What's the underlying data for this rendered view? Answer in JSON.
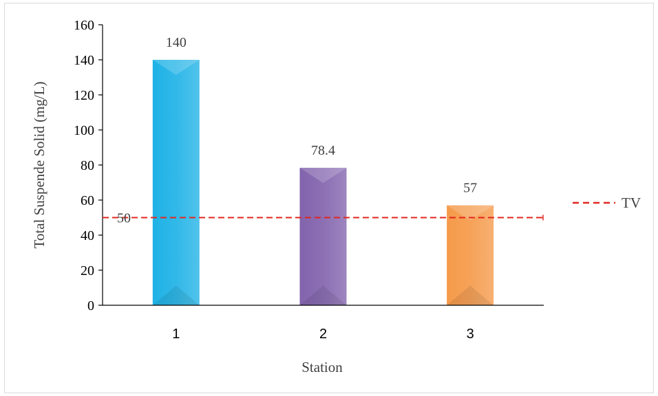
{
  "chart_data": {
    "type": "bar",
    "categories": [
      "1",
      "2",
      "3"
    ],
    "values": [
      140,
      78.4,
      57
    ],
    "data_labels": [
      "140",
      "78.4",
      "57"
    ],
    "xlabel": "Station",
    "ylabel": "Total Suspende Solid (mg/L)",
    "ylim": [
      0,
      160
    ],
    "yticks": [
      0,
      20,
      40,
      60,
      80,
      100,
      120,
      140,
      160
    ],
    "bar_colors": [
      "#1fb2e6",
      "#8263ad",
      "#f59a4a"
    ],
    "reference_line": {
      "value": 50,
      "label": "50",
      "legend": "TV",
      "color": "#e0261f",
      "style": "dashed"
    },
    "legend_placement": "right",
    "grid": false
  }
}
